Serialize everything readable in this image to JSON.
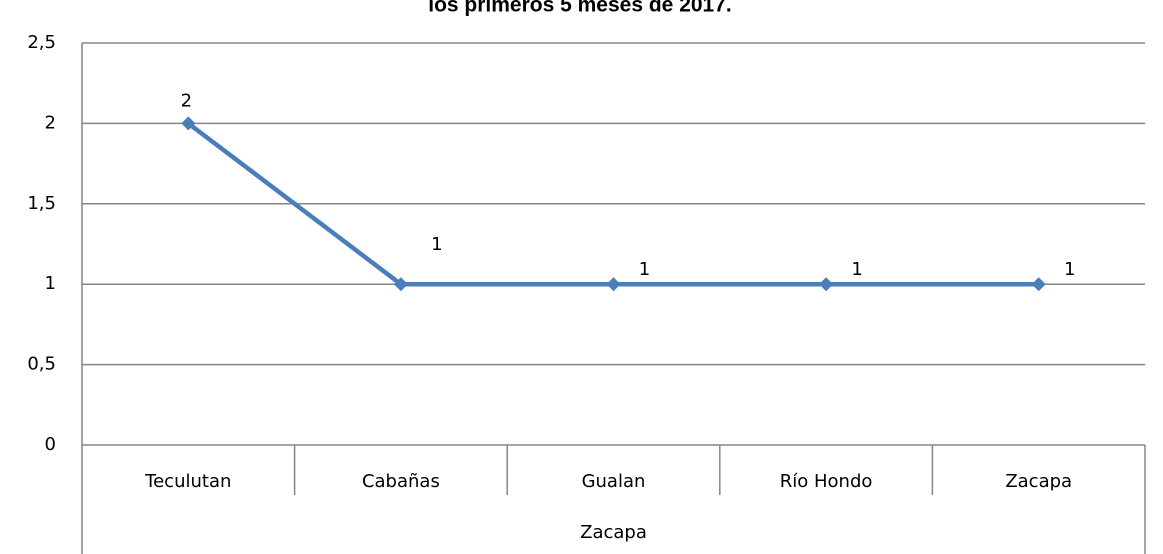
{
  "chart_data": {
    "type": "line",
    "title": "los primeros 5 meses de 2017.",
    "categories": [
      "Teculutan",
      "Cabañas",
      "Gualan",
      "Río Hondo",
      "Zacapa"
    ],
    "group_label": "Zacapa",
    "series": [
      {
        "color": "#4a7ebb",
        "values": [
          2,
          1,
          1,
          1,
          1
        ]
      }
    ],
    "ylim": [
      0,
      2.5
    ],
    "yticks": [
      0,
      {
        "value": 0.5,
        "label": "0,5"
      },
      1,
      {
        "value": 1.5,
        "label": "1,5"
      },
      2,
      {
        "value": 2.5,
        "label": "2,5"
      }
    ],
    "grid": true
  }
}
